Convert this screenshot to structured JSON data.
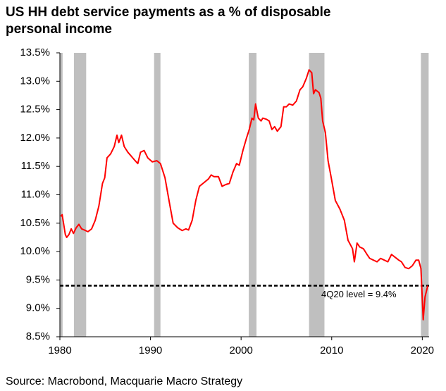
{
  "chart_data": {
    "type": "line",
    "title": "US HH debt service payments as a % of disposable personal income",
    "source": "Source: Macrobond, Macquarie Macro Strategy",
    "color": "#ff0000",
    "x": [
      1980.1,
      1980.25,
      1980.6,
      1980.75,
      1981.0,
      1981.25,
      1981.5,
      1981.8,
      1982.1,
      1982.4,
      1982.7,
      1983.1,
      1983.5,
      1983.9,
      1984.3,
      1984.7,
      1984.95,
      1985.2,
      1985.6,
      1986.0,
      1986.3,
      1986.5,
      1986.8,
      1987.1,
      1987.5,
      1988.2,
      1988.6,
      1988.9,
      1989.3,
      1989.7,
      1990.2,
      1990.7,
      1991.1,
      1991.6,
      1992.1,
      1992.5,
      1993.0,
      1993.5,
      1993.9,
      1994.2,
      1994.6,
      1995.0,
      1995.4,
      1995.95,
      1996.4,
      1996.7,
      1997.0,
      1997.5,
      1997.9,
      1998.3,
      1998.7,
      1999.1,
      1999.5,
      1999.8,
      2000.2,
      2000.6,
      2000.9,
      2001.2,
      2001.4,
      2001.6,
      2001.9,
      2002.2,
      2002.4,
      2002.8,
      2003.1,
      2003.4,
      2003.7,
      2004.0,
      2004.4,
      2004.7,
      2005.0,
      2005.3,
      2005.7,
      2006.1,
      2006.5,
      2006.8,
      2007.2,
      2007.5,
      2007.8,
      2008.0,
      2008.2,
      2008.6,
      2008.8,
      2009.0,
      2009.3,
      2009.6,
      2009.95,
      2010.4,
      2010.9,
      2011.4,
      2011.8,
      2012.3,
      2012.5,
      2012.8,
      2013.1,
      2013.5,
      2013.9,
      2014.2,
      2014.6,
      2015.0,
      2015.4,
      2015.8,
      2016.2,
      2016.6,
      2017.0,
      2017.4,
      2017.7,
      2018.1,
      2018.5,
      2018.9,
      2019.3,
      2019.6,
      2019.85,
      2020.1,
      2020.3,
      2020.6
    ],
    "values": [
      10.62,
      10.65,
      10.3,
      10.25,
      10.3,
      10.4,
      10.32,
      10.42,
      10.48,
      10.4,
      10.38,
      10.35,
      10.4,
      10.55,
      10.8,
      11.2,
      11.3,
      11.65,
      11.72,
      11.85,
      12.05,
      11.92,
      12.05,
      11.85,
      11.75,
      11.62,
      11.55,
      11.75,
      11.78,
      11.65,
      11.58,
      11.6,
      11.55,
      11.3,
      10.85,
      10.5,
      10.42,
      10.37,
      10.4,
      10.38,
      10.55,
      10.9,
      11.15,
      11.22,
      11.28,
      11.35,
      11.32,
      11.32,
      11.15,
      11.18,
      11.2,
      11.4,
      11.55,
      11.52,
      11.78,
      12.0,
      12.15,
      12.35,
      12.32,
      12.6,
      12.35,
      12.3,
      12.35,
      12.33,
      12.3,
      12.15,
      12.2,
      12.12,
      12.2,
      12.55,
      12.55,
      12.6,
      12.58,
      12.65,
      12.85,
      12.9,
      13.05,
      13.2,
      13.15,
      12.78,
      12.85,
      12.8,
      12.7,
      12.3,
      12.1,
      11.6,
      11.3,
      10.9,
      10.75,
      10.55,
      10.2,
      10.05,
      9.82,
      10.15,
      10.08,
      10.05,
      9.95,
      9.88,
      9.85,
      9.82,
      9.88,
      9.85,
      9.82,
      9.95,
      9.9,
      9.85,
      9.82,
      9.72,
      9.7,
      9.75,
      9.85,
      9.85,
      9.7,
      8.8,
      9.2,
      9.4
    ],
    "recessions": [
      [
        1980.0,
        1980.3
      ],
      [
        1981.55,
        1982.9
      ],
      [
        1990.4,
        1991.1
      ],
      [
        2000.85,
        2001.7
      ],
      [
        2007.5,
        2009.2
      ],
      [
        2019.85,
        2020.7
      ]
    ],
    "recession_color": "#bfbfbf",
    "reference_line": {
      "value": 9.4,
      "label": "4Q20 level = 9.4%"
    },
    "xlim": [
      1980,
      2020.75
    ],
    "xticks": [
      1980,
      1990,
      2000,
      2010,
      2020
    ],
    "ylim": [
      8.5,
      13.5
    ],
    "yticks": [
      {
        "value": 8.5,
        "label": "8.5%"
      },
      {
        "value": 9.0,
        "label": "9.0%"
      },
      {
        "value": 9.5,
        "label": "9.5%"
      },
      {
        "value": 10.0,
        "label": "10.0%"
      },
      {
        "value": 10.5,
        "label": "10.5%"
      },
      {
        "value": 11.0,
        "label": "11.0%"
      },
      {
        "value": 11.5,
        "label": "11.5%"
      },
      {
        "value": 12.0,
        "label": "12.0%"
      },
      {
        "value": 12.5,
        "label": "12.5%"
      },
      {
        "value": 13.0,
        "label": "13.0%"
      },
      {
        "value": 13.5,
        "label": "13.5%"
      }
    ]
  }
}
